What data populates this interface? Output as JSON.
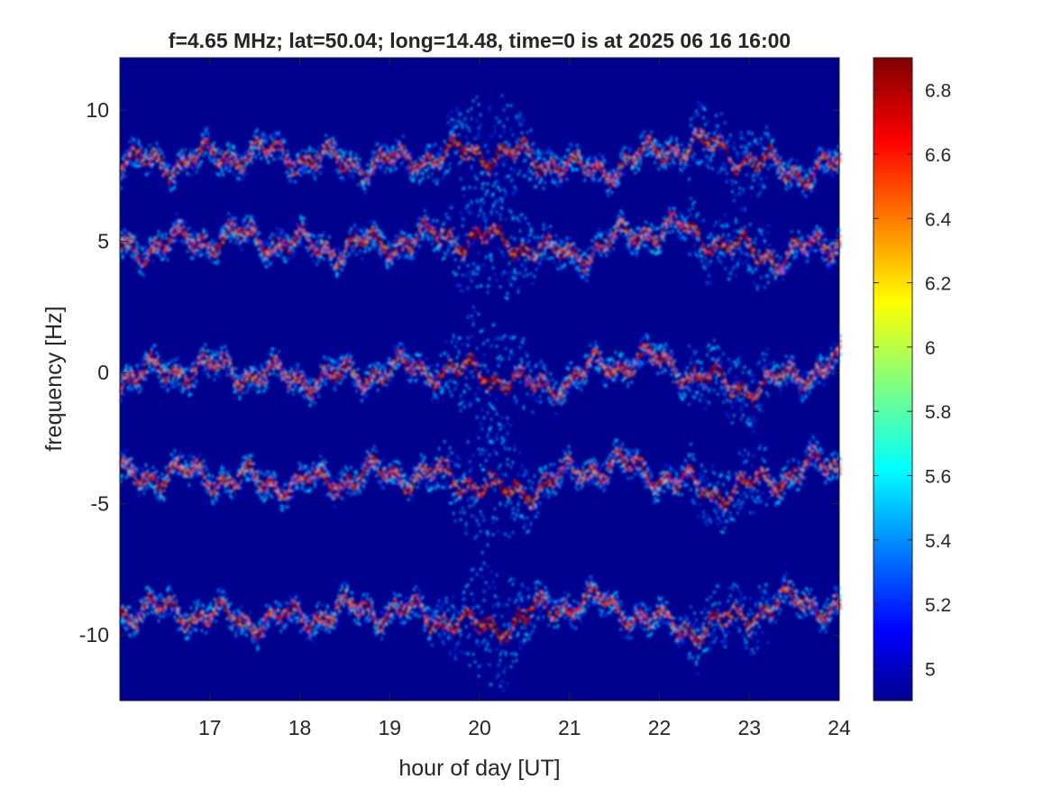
{
  "chart_data": {
    "type": "heatmap",
    "title": "f=4.65 MHz;  lat=50.04; long=14.48, time=0 is at 2025 06 16 16:00",
    "xlabel": "hour of day [UT]",
    "ylabel": "frequency [Hz]",
    "xlim": [
      16,
      24
    ],
    "ylim": [
      -12.5,
      12
    ],
    "x_ticks": [
      "17",
      "18",
      "19",
      "20",
      "21",
      "22",
      "23",
      "24"
    ],
    "y_ticks": [
      "10",
      "5",
      "0",
      "-5",
      "-10"
    ],
    "colorbar": {
      "range": [
        4.9,
        6.9
      ],
      "ticks": [
        "6.8",
        "6.6",
        "6.4",
        "6.2",
        "6",
        "5.8",
        "5.6",
        "5.4",
        "5.2",
        "5"
      ],
      "colormap": "jet"
    },
    "background_color": "#00008f",
    "series": [
      {
        "center_hz": 8.2
      },
      {
        "center_hz": 5.0
      },
      {
        "center_hz": 0.0
      },
      {
        "center_hz": -4.0
      },
      {
        "center_hz": -9.2
      }
    ],
    "grid": false,
    "legend": "none"
  }
}
